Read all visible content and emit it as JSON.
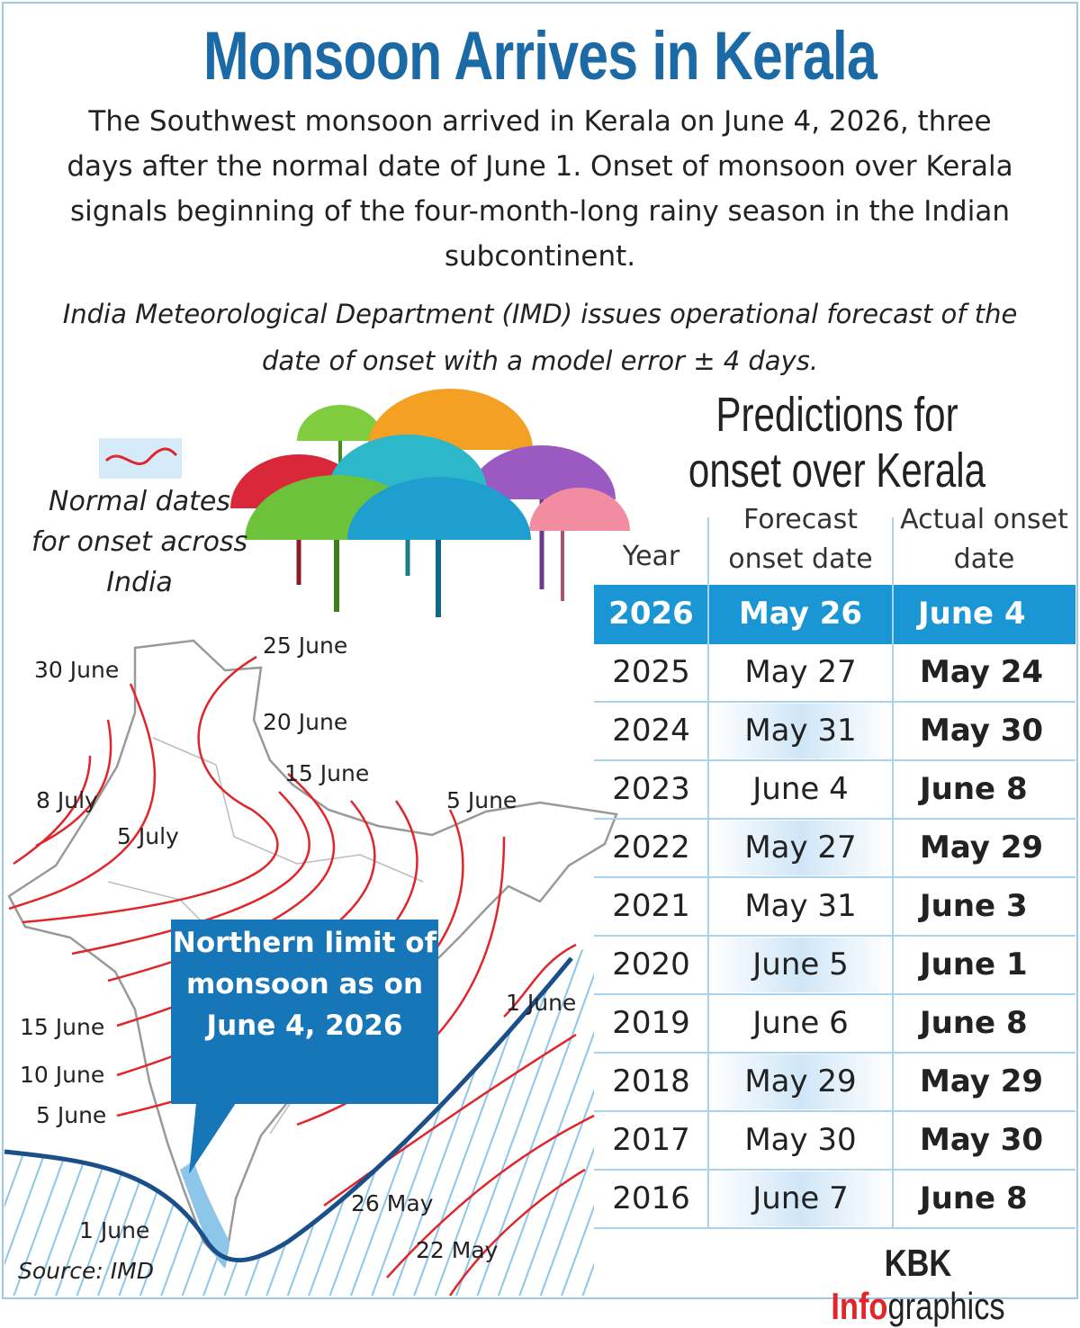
{
  "header": {
    "title": "Monsoon Arrives in Kerala",
    "intro": "The Southwest monsoon arrived in Kerala on June 4, 2026, three days after the normal date of June 1. Onset of monsoon over Kerala signals beginning of the four-month-long rainy season in the Indian subcontinent.",
    "note": "India Meteorological Department (IMD) issues operational forecast of the date of onset with a model error ± 4 days."
  },
  "legend": {
    "label": "Normal dates for onset across India"
  },
  "map": {
    "labels": [
      "30 June",
      "25 June",
      "20 June",
      "15 June",
      "8 July",
      "5 July",
      "5 June",
      "15 June",
      "10 June",
      "5 June",
      "1 June",
      "1 June",
      "26 May",
      "22 May"
    ],
    "callout": "Northern limit of monsoon as on June 4, 2026"
  },
  "table": {
    "title": "Predictions for onset over Kerala",
    "columns": [
      "Year",
      "Forecast onset date",
      "Actual onset date"
    ],
    "rows": [
      [
        2026,
        "May 26",
        "June 4"
      ],
      [
        2025,
        "May 27",
        "May 24"
      ],
      [
        2024,
        "May 31",
        "May 30"
      ],
      [
        2023,
        "June 4",
        "June 8"
      ],
      [
        2022,
        "May 27",
        "May 29"
      ],
      [
        2021,
        "May 31",
        "June 3"
      ],
      [
        2020,
        "June 5",
        "June 1"
      ],
      [
        2019,
        "June 6",
        "June 8"
      ],
      [
        2018,
        "May 29",
        "May 29"
      ],
      [
        2017,
        "May 30",
        "May 30"
      ],
      [
        2016,
        "June 7",
        "June 8"
      ]
    ]
  },
  "footer": {
    "source": "Source: IMD",
    "brand": [
      "KBK",
      "Info",
      "graphics"
    ]
  }
}
